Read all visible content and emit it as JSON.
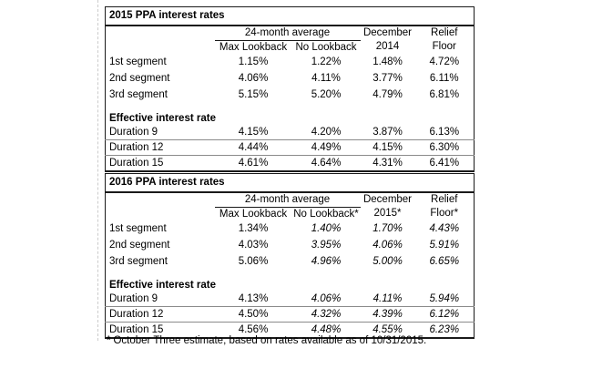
{
  "colors": {
    "background": "#ffffff",
    "text": "#000000",
    "table_border": "#1a1a1a",
    "row_gridline": "#8a8a8a",
    "page_break_guide": "#cccccc"
  },
  "tables": [
    {
      "title": "2015 PPA interest rates",
      "headers": {
        "group": "24-month average",
        "max_lookback": "Max Lookback",
        "no_lookback": "No Lookback",
        "december_line1": "December",
        "december_line2": "2014",
        "relief_line1": "Relief",
        "relief_line2": "Floor"
      },
      "segment_rows": [
        {
          "label": "1st segment",
          "values": [
            "1.15%",
            "1.22%",
            "1.48%",
            "4.72%"
          ]
        },
        {
          "label": "2nd segment",
          "values": [
            "4.06%",
            "4.11%",
            "3.77%",
            "6.11%"
          ]
        },
        {
          "label": "3rd segment",
          "values": [
            "5.15%",
            "5.20%",
            "4.79%",
            "6.81%"
          ]
        }
      ],
      "section_label": "Effective interest rate",
      "duration_rows": [
        {
          "label": "Duration 9",
          "values": [
            "4.15%",
            "4.20%",
            "3.87%",
            "6.13%"
          ]
        },
        {
          "label": "Duration 12",
          "values": [
            "4.44%",
            "4.49%",
            "4.15%",
            "6.30%"
          ]
        },
        {
          "label": "Duration 15",
          "values": [
            "4.61%",
            "4.64%",
            "4.31%",
            "6.41%"
          ]
        }
      ]
    },
    {
      "title": "2016 PPA interest rates",
      "headers": {
        "group": "24-month average",
        "max_lookback": "Max Lookback",
        "no_lookback": "No Lookback*",
        "december_line1": "December",
        "december_line2": "2015*",
        "relief_line1": "Relief",
        "relief_line2": "Floor*"
      },
      "segment_rows": [
        {
          "label": "1st segment",
          "values": [
            "1.34%",
            "1.40%",
            "1.70%",
            "4.43%"
          ]
        },
        {
          "label": "2nd segment",
          "values": [
            "4.03%",
            "3.95%",
            "4.06%",
            "5.91%"
          ]
        },
        {
          "label": "3rd segment",
          "values": [
            "5.06%",
            "4.96%",
            "5.00%",
            "6.65%"
          ]
        }
      ],
      "section_label": "Effective interest rate",
      "duration_rows": [
        {
          "label": "Duration 9",
          "values": [
            "4.13%",
            "4.06%",
            "4.11%",
            "5.94%"
          ]
        },
        {
          "label": "Duration 12",
          "values": [
            "4.50%",
            "4.32%",
            "4.39%",
            "6.12%"
          ]
        },
        {
          "label": "Duration 15",
          "values": [
            "4.56%",
            "4.48%",
            "4.55%",
            "6.23%"
          ]
        }
      ]
    }
  ],
  "footnote": {
    "marker": "*",
    "text": "October Three estimate, based on rates available as of 10/31/2015."
  }
}
